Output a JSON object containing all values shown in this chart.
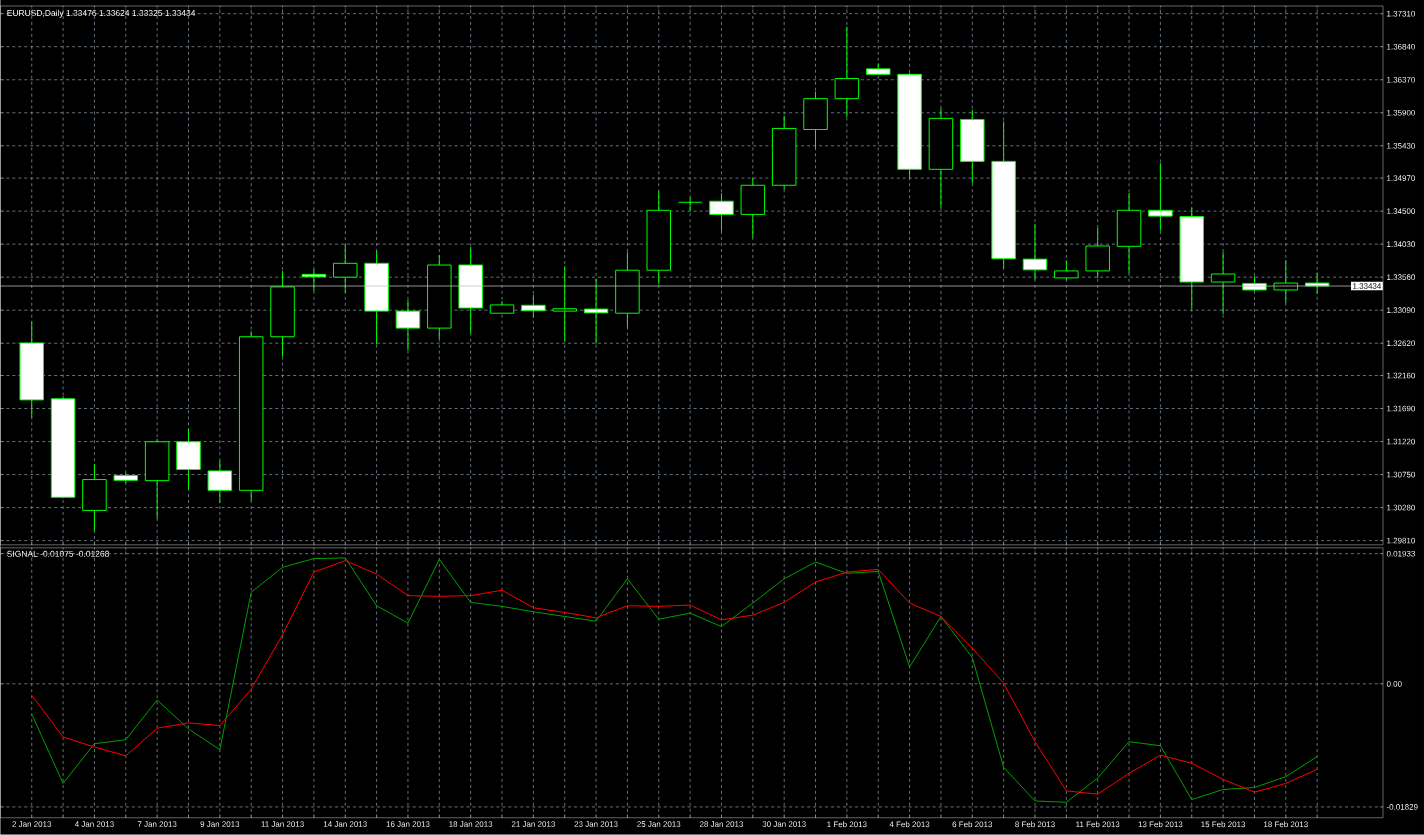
{
  "chart_data": [
    {
      "type": "candlestick",
      "title": "EURUSD,Daily 1.33476 1.33624 1.33325 1.33434",
      "color": "#00ff00",
      "grid": true,
      "tick_labels": "y",
      "categories": [
        null,
        null,
        null,
        null,
        null,
        null,
        null,
        null,
        null,
        null,
        null,
        null,
        null,
        null,
        null,
        null,
        null,
        null,
        null,
        null,
        null,
        null,
        null,
        null,
        null,
        null,
        null,
        null,
        null,
        null,
        null,
        null,
        null,
        null,
        null,
        null,
        null,
        null,
        null,
        null,
        null,
        null
      ],
      "ohlc": [
        [
          1.32623,
          1.32924,
          1.31557,
          1.31813
        ],
        [
          1.31828,
          1.31863,
          1.30412,
          1.30427
        ],
        [
          1.3024,
          1.30901,
          1.29953,
          1.30679
        ],
        [
          1.30738,
          1.30777,
          1.30629,
          1.30669
        ],
        [
          1.30664,
          1.31256,
          1.30126,
          1.31217
        ],
        [
          1.31217,
          1.31404,
          1.30545,
          1.30822
        ],
        [
          1.30802,
          1.3095,
          1.30348,
          1.30526
        ],
        [
          1.30526,
          1.3279,
          1.30378,
          1.32712
        ],
        [
          1.32712,
          1.33649,
          1.3243,
          1.33422
        ],
        [
          1.336,
          1.33674,
          1.33363,
          1.33565
        ],
        [
          1.3356,
          1.34029,
          1.33338,
          1.33757
        ],
        [
          1.33757,
          1.33935,
          1.32603,
          1.33077
        ],
        [
          1.33077,
          1.33234,
          1.32519,
          1.32835
        ],
        [
          1.32835,
          1.33876,
          1.32677,
          1.33733
        ],
        [
          1.33733,
          1.33989,
          1.32766,
          1.33121
        ],
        [
          1.33047,
          1.3322,
          1.33047,
          1.33165
        ],
        [
          1.3316,
          1.33308,
          1.32988,
          1.33082
        ],
        [
          1.33077,
          1.33713,
          1.32642,
          1.33111
        ],
        [
          1.33106,
          1.3354,
          1.32613,
          1.33052
        ],
        [
          1.33047,
          1.33915,
          1.32845,
          1.33659
        ],
        [
          1.33659,
          1.34784,
          1.33457,
          1.34512
        ],
        [
          1.34626,
          1.34695,
          1.34498,
          1.34626
        ],
        [
          1.34641,
          1.34754,
          1.34216,
          1.34453
        ],
        [
          1.34453,
          1.34971,
          1.34118,
          1.34868
        ],
        [
          1.34868,
          1.35859,
          1.34808,
          1.35677
        ],
        [
          1.35662,
          1.362,
          1.35391,
          1.36101
        ],
        [
          1.36101,
          1.37127,
          1.35835,
          1.36387
        ],
        [
          1.36525,
          1.36604,
          1.36447,
          1.36447
        ],
        [
          1.36447,
          1.36466,
          1.34966,
          1.35095
        ],
        [
          1.35095,
          1.35963,
          1.34552,
          1.3582
        ],
        [
          1.35805,
          1.35943,
          1.34897,
          1.35208
        ],
        [
          1.35208,
          1.35776,
          1.33684,
          1.33822
        ],
        [
          1.33817,
          1.3432,
          1.33526,
          1.33664
        ],
        [
          1.3355,
          1.33797,
          1.33516,
          1.33649
        ],
        [
          1.33649,
          1.34261,
          1.3355,
          1.34004
        ],
        [
          1.33999,
          1.34759,
          1.33614,
          1.34512
        ],
        [
          1.34512,
          1.35183,
          1.34221,
          1.34429
        ],
        [
          1.34424,
          1.34552,
          1.33106,
          1.33491
        ],
        [
          1.33491,
          1.33915,
          1.33032,
          1.33605
        ],
        [
          1.33471,
          1.3357,
          1.33363,
          1.33378
        ],
        [
          1.33378,
          1.33802,
          1.3319,
          1.33476
        ],
        [
          1.33476,
          1.33624,
          1.33325,
          1.33434
        ]
      ],
      "ylim": [
        1.2975,
        1.3742
      ],
      "yticks": [
        {
          "value": 1.2981,
          "label": "1.29810"
        },
        {
          "value": 1.3028,
          "label": "1.30280"
        },
        {
          "value": 1.3075,
          "label": "1.30750"
        },
        {
          "value": 1.3122,
          "label": "1.31220"
        },
        {
          "value": 1.3169,
          "label": "1.31690"
        },
        {
          "value": 1.3216,
          "label": "1.32160"
        },
        {
          "value": 1.3262,
          "label": "1.32620"
        },
        {
          "value": 1.3309,
          "label": "1.33090"
        },
        {
          "value": 1.3356,
          "label": "1.33560"
        },
        {
          "value": 1.3403,
          "label": "1.34030"
        },
        {
          "value": 1.345,
          "label": "1.34500"
        },
        {
          "value": 1.3497,
          "label": "1.34970"
        },
        {
          "value": 1.3543,
          "label": "1.35430"
        },
        {
          "value": 1.359,
          "label": "1.35900"
        },
        {
          "value": 1.3637,
          "label": "1.36370"
        },
        {
          "value": 1.3684,
          "label": "1.36840"
        },
        {
          "value": 1.3731,
          "label": "1.37310"
        }
      ],
      "ref_lines": [
        {
          "axis": "y",
          "value": 1.33434,
          "label": "1.33434",
          "color": "#c0c0c0"
        }
      ]
    },
    {
      "type": "line",
      "title": "SIGNAL -0.01075 -0.01268",
      "grid": true,
      "categories": [
        "2 Jan 2013",
        null,
        "4 Jan 2013",
        null,
        "7 Jan 2013",
        null,
        "9 Jan 2013",
        null,
        "11 Jan 2013",
        null,
        "14 Jan 2013",
        null,
        "16 Jan 2013",
        null,
        "18 Jan 2013",
        null,
        "21 Jan 2013",
        null,
        "23 Jan 2013",
        null,
        "25 Jan 2013",
        null,
        "28 Jan 2013",
        null,
        "30 Jan 2013",
        null,
        "1 Feb 2013",
        null,
        "4 Feb 2013",
        null,
        "6 Feb 2013",
        null,
        "8 Feb 2013",
        null,
        "11 Feb 2013",
        null,
        "13 Feb 2013",
        null,
        "15 Feb 2013",
        null,
        "18 Feb 2013",
        null
      ],
      "series": [
        {
          "color": "#00a000",
          "values": [
            -0.0045,
            -0.0148,
            -0.0089,
            -0.0083,
            -0.0024,
            -0.0067,
            -0.0098,
            0.0136,
            0.0173,
            0.0186,
            0.0187,
            0.0116,
            0.009,
            0.0185,
            0.0121,
            0.0115,
            0.0107,
            0.01,
            0.0093,
            0.0156,
            0.0096,
            0.0105,
            0.0085,
            0.012,
            0.0156,
            0.0181,
            0.0164,
            0.0167,
            0.0025,
            0.01,
            0.0039,
            -0.0124,
            -0.0174,
            -0.0176,
            -0.014,
            -0.0086,
            -0.0092,
            -0.0172,
            -0.0157,
            -0.0154,
            -0.0138,
            -0.0108
          ]
        },
        {
          "color": "#ff0000",
          "values": [
            -0.0017,
            -0.0079,
            -0.0094,
            -0.0107,
            -0.0066,
            -0.0058,
            -0.0062,
            -0.0008,
            0.0073,
            0.0166,
            0.0183,
            0.0163,
            0.0131,
            0.013,
            0.0131,
            0.0139,
            0.0113,
            0.0106,
            0.0098,
            0.0116,
            0.0115,
            0.0117,
            0.0095,
            0.0102,
            0.0121,
            0.0151,
            0.0166,
            0.017,
            0.012,
            0.01,
            0.0053,
            0.0001,
            -0.0086,
            -0.0159,
            -0.0164,
            -0.0133,
            -0.0106,
            -0.0118,
            -0.0142,
            -0.0161,
            -0.0148,
            -0.0127
          ]
        }
      ],
      "ylim": [
        -0.0199,
        0.0202
      ],
      "yticks": [
        -0.01829,
        {
          "value": 0,
          "label": "0.00"
        },
        0.01933
      ]
    }
  ]
}
